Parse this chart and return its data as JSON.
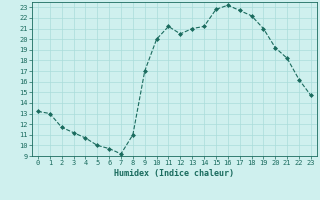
{
  "x": [
    0,
    1,
    2,
    3,
    4,
    5,
    6,
    7,
    8,
    9,
    10,
    11,
    12,
    13,
    14,
    15,
    16,
    17,
    18,
    19,
    20,
    21,
    22,
    23
  ],
  "y": [
    13.2,
    13.0,
    11.7,
    11.2,
    10.7,
    10.0,
    9.7,
    9.2,
    11.0,
    17.0,
    20.0,
    21.2,
    20.5,
    21.0,
    21.2,
    22.8,
    23.2,
    22.7,
    22.2,
    21.0,
    19.2,
    18.2,
    16.2,
    14.7
  ],
  "line_color": "#1a6b5e",
  "bg_color": "#cff0ee",
  "grid_color": "#aaddda",
  "xlabel": "Humidex (Indice chaleur)",
  "xlim": [
    -0.5,
    23.5
  ],
  "ylim": [
    9,
    23.5
  ],
  "yticks": [
    9,
    10,
    11,
    12,
    13,
    14,
    15,
    16,
    17,
    18,
    19,
    20,
    21,
    22,
    23
  ],
  "xticks": [
    0,
    1,
    2,
    3,
    4,
    5,
    6,
    7,
    8,
    9,
    10,
    11,
    12,
    13,
    14,
    15,
    16,
    17,
    18,
    19,
    20,
    21,
    22,
    23
  ],
  "tick_fontsize": 5.0,
  "label_fontsize": 6.0
}
